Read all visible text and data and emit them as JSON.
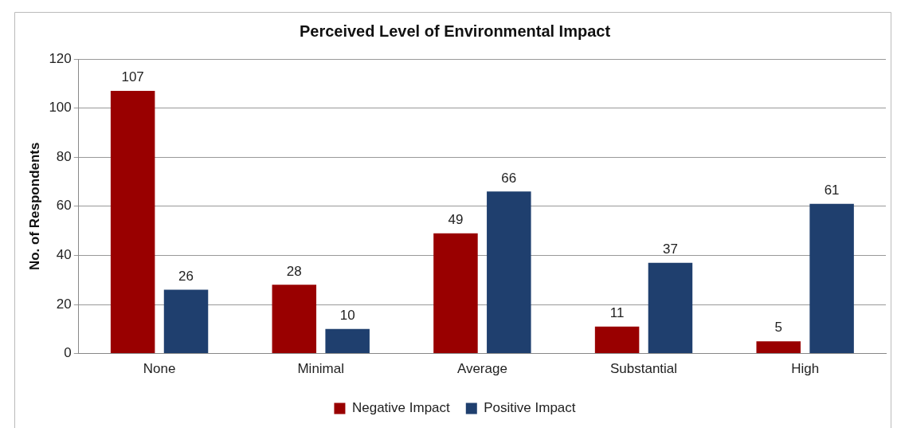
{
  "chart_data": {
    "type": "bar",
    "title": "Perceived Level of Environmental Impact",
    "ylabel": "No. of Respondents",
    "categories": [
      "None",
      "Minimal",
      "Average",
      "Substantial",
      "High"
    ],
    "series": [
      {
        "name": "Negative Impact",
        "color": "#990000",
        "values": [
          107,
          28,
          49,
          11,
          5
        ]
      },
      {
        "name": "Positive Impact",
        "color": "#1f3f6e",
        "values": [
          26,
          10,
          66,
          37,
          61
        ]
      }
    ],
    "ylim": [
      0,
      120
    ],
    "yticks": [
      0,
      20,
      40,
      60,
      80,
      100,
      120
    ],
    "grid": "y",
    "legend": "bottom",
    "data_labels": true
  }
}
